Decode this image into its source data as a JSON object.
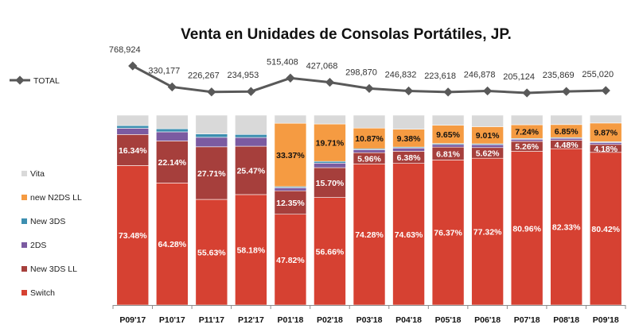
{
  "chart_data": {
    "type": "bar",
    "title": "Venta en Unidades de Consolas Portátiles, JP.",
    "categories": [
      "P09'17",
      "P10'17",
      "P11'17",
      "P12'17",
      "P01'18",
      "P02'18",
      "P03'18",
      "P04'18",
      "P05'18",
      "P06'18",
      "P07'18",
      "P08'18",
      "P09'18"
    ],
    "series": [
      {
        "name": "Switch",
        "color": "#d64132",
        "values": [
          73.48,
          64.28,
          55.63,
          58.18,
          47.82,
          56.66,
          74.28,
          74.63,
          76.37,
          77.32,
          80.96,
          82.33,
          80.42
        ],
        "labels": [
          "73.48%",
          "64.28%",
          "55.63%",
          "58.18%",
          "47.82%",
          "56.66%",
          "74.28%",
          "74.63%",
          "76.37%",
          "77.32%",
          "80.96%",
          "82.33%",
          "80.42%"
        ]
      },
      {
        "name": "New 3DS LL",
        "color": "#a63f3c",
        "values": [
          16.34,
          22.14,
          27.71,
          25.47,
          12.35,
          15.7,
          5.96,
          6.38,
          6.81,
          5.62,
          5.26,
          4.48,
          4.18
        ],
        "labels": [
          "16.34%",
          "22.14%",
          "27.71%",
          "25.47%",
          "12.35%",
          "15.70%",
          "5.96%",
          "6.38%",
          "6.81%",
          "5.62%",
          "5.26%",
          "4.48%",
          "4.18%"
        ]
      },
      {
        "name": "2DS",
        "color": "#7b5ba1",
        "values": [
          3.3,
          4.8,
          5.0,
          4.6,
          1.6,
          2.4,
          1.6,
          1.7,
          1.4,
          1.5,
          1.1,
          1.0,
          1.0
        ]
      },
      {
        "name": "New 3DS",
        "color": "#3d8fb0",
        "values": [
          1.4,
          1.6,
          1.8,
          1.6,
          0.6,
          0.9,
          0.5,
          0.5,
          0.5,
          0.5,
          0.4,
          0.4,
          0.4
        ]
      },
      {
        "name": "new N2DS LL",
        "color": "#f59b42",
        "values": [
          0,
          0,
          0,
          0,
          33.37,
          19.71,
          10.87,
          9.38,
          9.65,
          9.01,
          7.24,
          6.85,
          9.87
        ],
        "labels": [
          "",
          "",
          "",
          "",
          "33.37%",
          "19.71%",
          "10.87%",
          "9.38%",
          "9.65%",
          "9.01%",
          "7.24%",
          "6.85%",
          "9.87%"
        ]
      },
      {
        "name": "Vita",
        "color": "#d9d9d9",
        "values": [
          5.48,
          7.18,
          9.86,
          10.15,
          4.26,
          4.63,
          6.79,
          7.41,
          5.27,
          6.05,
          5.04,
          4.94,
          4.13
        ]
      }
    ],
    "total": {
      "name": "TOTAL",
      "color": "#595959",
      "values": [
        768924,
        330177,
        226267,
        234953,
        515408,
        427068,
        298870,
        246832,
        223618,
        246878,
        205124,
        235869,
        255020
      ],
      "labels": [
        "768,924",
        "330,177",
        "226,267",
        "234,953",
        "515,408",
        "427,068",
        "298,870",
        "246,832",
        "223,618",
        "246,878",
        "205,124",
        "235,869",
        "255,020"
      ]
    },
    "legend_position": "left",
    "legend_order": [
      "Vita",
      "new N2DS LL",
      "New 3DS",
      "2DS",
      "New 3DS LL",
      "Switch"
    ]
  }
}
